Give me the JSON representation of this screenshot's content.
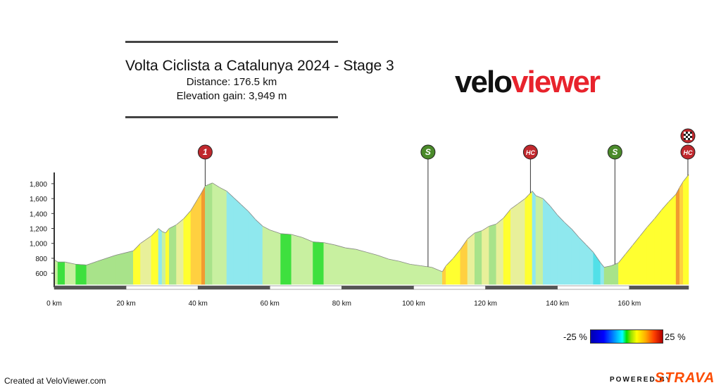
{
  "header": {
    "title": "Volta Ciclista a Catalunya 2024 - Stage 3",
    "distance": "Distance: 176.5 km",
    "elevation_gain": "Elevation gain: 3,949 m"
  },
  "logo": {
    "part1": "velo",
    "part2": "viewer"
  },
  "legend": {
    "min_label": "-25 %",
    "max_label": "25 %"
  },
  "footer": {
    "created": "Created at VeloViewer.com",
    "powered": "POWERED BY",
    "brand": "STRAVA"
  },
  "colors": {
    "brand_red": "#e8232c",
    "strava_orange": "#fc4c02",
    "sprint_green": "#4a8a2a",
    "climb_red": "#c0282d"
  },
  "chart_data": {
    "type": "area",
    "title": "Volta Ciclista a Catalunya 2024 - Stage 3",
    "xlabel": "",
    "ylabel": "",
    "xlim": [
      0,
      176.5
    ],
    "ylim": [
      450,
      1950
    ],
    "x_ticks": [
      0,
      20,
      40,
      60,
      80,
      100,
      120,
      140,
      160
    ],
    "x_tick_labels": [
      "0 km",
      "20 km",
      "40 km",
      "60 km",
      "80 km",
      "100 km",
      "120 km",
      "140 km",
      "160 km"
    ],
    "y_ticks": [
      600,
      800,
      1000,
      1200,
      1400,
      1600,
      1800
    ],
    "y_tick_labels": [
      "600",
      "800",
      "1,000",
      "1,200",
      "1,400",
      "1,600",
      "1,800"
    ],
    "grid": false,
    "profile": [
      [
        0,
        780
      ],
      [
        1,
        750
      ],
      [
        3,
        750
      ],
      [
        6,
        720
      ],
      [
        9,
        710
      ],
      [
        12,
        760
      ],
      [
        17,
        840
      ],
      [
        22,
        900
      ],
      [
        24,
        1000
      ],
      [
        27,
        1100
      ],
      [
        29,
        1200
      ],
      [
        30,
        1160
      ],
      [
        31,
        1140
      ],
      [
        32,
        1200
      ],
      [
        34,
        1250
      ],
      [
        36,
        1330
      ],
      [
        38,
        1440
      ],
      [
        40,
        1600
      ],
      [
        41,
        1680
      ],
      [
        42,
        1770
      ],
      [
        43,
        1790
      ],
      [
        44,
        1810
      ],
      [
        46,
        1750
      ],
      [
        48,
        1700
      ],
      [
        50,
        1610
      ],
      [
        52,
        1520
      ],
      [
        54,
        1430
      ],
      [
        56,
        1320
      ],
      [
        58,
        1230
      ],
      [
        60,
        1180
      ],
      [
        63,
        1130
      ],
      [
        66,
        1120
      ],
      [
        69,
        1080
      ],
      [
        72,
        1020
      ],
      [
        75,
        1010
      ],
      [
        78,
        980
      ],
      [
        81,
        940
      ],
      [
        84,
        920
      ],
      [
        87,
        880
      ],
      [
        90,
        840
      ],
      [
        93,
        790
      ],
      [
        96,
        760
      ],
      [
        99,
        720
      ],
      [
        102,
        700
      ],
      [
        105,
        680
      ],
      [
        107,
        640
      ],
      [
        108,
        620
      ],
      [
        109,
        700
      ],
      [
        111,
        800
      ],
      [
        113,
        920
      ],
      [
        115,
        1060
      ],
      [
        117,
        1140
      ],
      [
        119,
        1170
      ],
      [
        121,
        1230
      ],
      [
        123,
        1260
      ],
      [
        125,
        1340
      ],
      [
        127,
        1460
      ],
      [
        129,
        1530
      ],
      [
        131,
        1600
      ],
      [
        132,
        1650
      ],
      [
        133,
        1700
      ],
      [
        134,
        1640
      ],
      [
        136,
        1600
      ],
      [
        138,
        1500
      ],
      [
        140,
        1380
      ],
      [
        142,
        1280
      ],
      [
        144,
        1190
      ],
      [
        146,
        1080
      ],
      [
        148,
        980
      ],
      [
        150,
        880
      ],
      [
        152,
        740
      ],
      [
        153,
        680
      ],
      [
        155,
        700
      ],
      [
        156,
        720
      ],
      [
        157,
        740
      ],
      [
        159,
        860
      ],
      [
        161,
        980
      ],
      [
        163,
        1100
      ],
      [
        165,
        1220
      ],
      [
        167,
        1330
      ],
      [
        169,
        1450
      ],
      [
        171,
        1560
      ],
      [
        173,
        1660
      ],
      [
        174,
        1750
      ],
      [
        175,
        1830
      ],
      [
        176.5,
        1920
      ]
    ],
    "gradient_colors": [
      "#6ed66e",
      "#3ee03e",
      "#a8e38a",
      "#e8f09a",
      "#f5f580",
      "#ff9f2a",
      "#8fe8ee",
      "#52e0e8",
      "#3ee03e",
      "#c8f0a0",
      "#ffff30",
      "#ffd040",
      "#f29a30",
      "#e66a20"
    ],
    "markers": [
      {
        "km": 42,
        "label": "1",
        "kind": "climb"
      },
      {
        "km": 104,
        "label": "S",
        "kind": "sprint"
      },
      {
        "km": 132.5,
        "label": "HC",
        "kind": "climb"
      },
      {
        "km": 156,
        "label": "S",
        "kind": "sprint"
      },
      {
        "km": 176.3,
        "label": "HC",
        "kind": "climb"
      }
    ],
    "finish_km": 176.3
  }
}
